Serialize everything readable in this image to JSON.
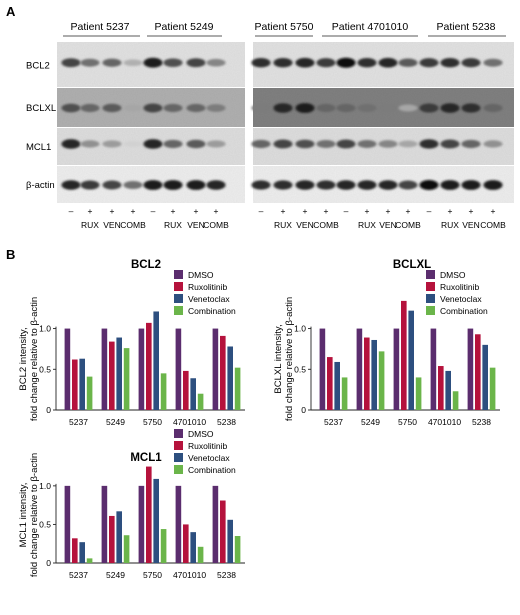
{
  "panel_a": {
    "letter": "A",
    "patients": [
      "Patient 5237",
      "Patient 5249",
      "Patient 5750",
      "Patient 4701010",
      "Patient 5238"
    ],
    "proteins": [
      "BCL2",
      "BCLXL",
      "MCL1",
      "β-actin"
    ],
    "treatment_row_1": [
      "–",
      "+",
      "+",
      "+"
    ],
    "treatment_row_2": [
      "",
      "RUX",
      "VEN",
      "COMB"
    ]
  },
  "panel_b": {
    "letter": "B"
  },
  "colors": {
    "DMSO": "#5b2d6e",
    "Ruxolitinib": "#b5123c",
    "Venetoclax": "#2d4f7f",
    "Combination": "#6bb54a"
  },
  "chart_data": [
    {
      "type": "bar",
      "title": "BCL2",
      "ylabel_line1": "BCL2 intensity,",
      "ylabel_line2": "fold change relative to β-actin",
      "categories": [
        "5237",
        "5249",
        "5750",
        "4701010",
        "5238"
      ],
      "series": [
        {
          "name": "DMSO",
          "values": [
            1.0,
            1.0,
            1.0,
            1.0,
            1.0
          ]
        },
        {
          "name": "Ruxolitinib",
          "values": [
            0.62,
            0.84,
            1.07,
            0.48,
            0.91
          ]
        },
        {
          "name": "Venetoclax",
          "values": [
            0.63,
            0.89,
            1.21,
            0.39,
            0.78
          ]
        },
        {
          "name": "Combination",
          "values": [
            0.41,
            0.76,
            0.45,
            0.2,
            0.52
          ]
        }
      ],
      "ylim": [
        0,
        1.4
      ],
      "yticks": [
        "0",
        "0.5",
        "1.0"
      ],
      "ytick_values": [
        0,
        0.5,
        1.0
      ],
      "legend": "top-right"
    },
    {
      "type": "bar",
      "title": "BCLXL",
      "ylabel_line1": "BCLXL intensity,",
      "ylabel_line2": "fold change relative to β-actin",
      "categories": [
        "5237",
        "5249",
        "5750",
        "4701010",
        "5238"
      ],
      "series": [
        {
          "name": "DMSO",
          "values": [
            1.0,
            1.0,
            1.0,
            1.0,
            1.0
          ]
        },
        {
          "name": "Ruxolitinib",
          "values": [
            0.65,
            0.89,
            1.34,
            0.54,
            0.93
          ]
        },
        {
          "name": "Venetoclax",
          "values": [
            0.59,
            0.86,
            1.22,
            0.48,
            0.8
          ]
        },
        {
          "name": "Combination",
          "values": [
            0.4,
            0.72,
            0.4,
            0.23,
            0.52
          ]
        }
      ],
      "ylim": [
        0,
        1.4
      ],
      "yticks": [
        "0",
        "0.5",
        "1.0"
      ],
      "ytick_values": [
        0,
        0.5,
        1.0
      ],
      "legend": "top-right"
    },
    {
      "type": "bar",
      "title": "MCL1",
      "ylabel_line1": "MCL1 intensity,",
      "ylabel_line2": "fold change relative to β-actin",
      "categories": [
        "5237",
        "5249",
        "5750",
        "4701010",
        "5238"
      ],
      "series": [
        {
          "name": "DMSO",
          "values": [
            1.0,
            1.0,
            1.0,
            1.0,
            1.0
          ]
        },
        {
          "name": "Ruxolitinib",
          "values": [
            0.32,
            0.61,
            1.25,
            0.5,
            0.81
          ]
        },
        {
          "name": "Venetoclax",
          "values": [
            0.27,
            0.67,
            1.09,
            0.4,
            0.56
          ]
        },
        {
          "name": "Combination",
          "values": [
            0.06,
            0.36,
            0.44,
            0.21,
            0.35
          ]
        }
      ],
      "ylim": [
        0,
        1.4
      ],
      "yticks": [
        "0",
        "0.5",
        "1.0"
      ],
      "ytick_values": [
        0,
        0.5,
        1.0
      ],
      "legend": "top-right"
    }
  ]
}
